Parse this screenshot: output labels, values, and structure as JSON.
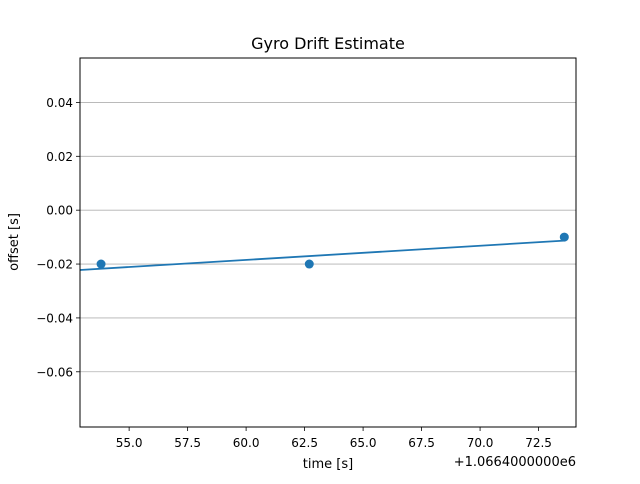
{
  "chart_data": {
    "type": "scatter",
    "title": "Gyro Drift Estimate",
    "xlabel": "time [s]",
    "ylabel": "offset [s]",
    "x_offset_label": "+1.0664000000e6",
    "xlim": [
      52.9,
      74.1
    ],
    "ylim": [
      -0.0805,
      0.0565
    ],
    "x_ticks": [
      55.0,
      57.5,
      60.0,
      62.5,
      65.0,
      67.5,
      70.0,
      72.5
    ],
    "x_tick_labels": [
      "55.0",
      "57.5",
      "60.0",
      "62.5",
      "65.0",
      "67.5",
      "70.0",
      "72.5"
    ],
    "y_ticks": [
      0.04,
      0.02,
      0.0,
      -0.02,
      -0.04,
      -0.06
    ],
    "y_tick_labels": [
      "0.04",
      "0.02",
      "0.00",
      "−0.02",
      "−0.04",
      "−0.06"
    ],
    "grid": "horizontal",
    "color": "#1f77b4",
    "series": [
      {
        "kind": "points",
        "x": [
          53.8,
          62.7,
          73.6
        ],
        "y": [
          -0.02,
          -0.02,
          -0.01
        ]
      },
      {
        "kind": "fit-line",
        "x": [
          52.9,
          73.6
        ],
        "y": [
          -0.0222,
          -0.0113
        ]
      }
    ]
  }
}
